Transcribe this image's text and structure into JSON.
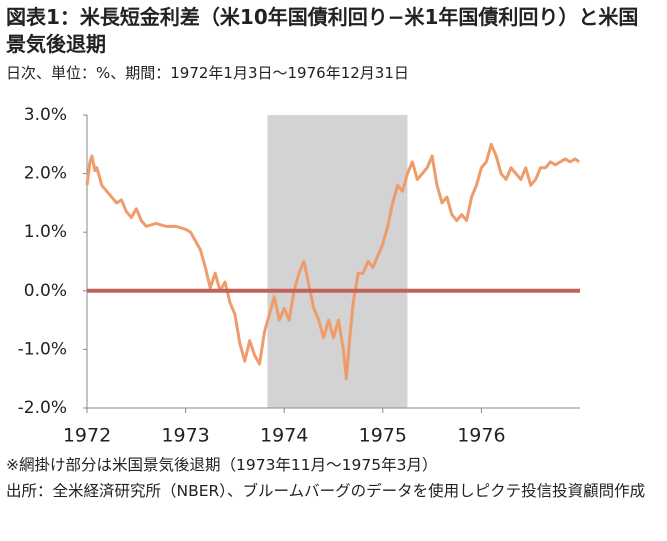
{
  "chart_data": {
    "type": "line",
    "title": "図表1：米長短金利差（米10年国債利回り−米1年国債利回り）と米国景気後退期",
    "subtitle": "日次、単位：%、期間：1972年1月3日～1976年12月31日",
    "notes": [
      "※網掛け部分は米国景気後退期（1973年11月～1975年3月）",
      "出所：全米経済研究所（NBER）、ブルームバーグのデータを使用しピクテ投信投資顧問作成"
    ],
    "x": [
      1972.0,
      1972.03,
      1972.05,
      1972.08,
      1972.1,
      1972.15,
      1972.2,
      1972.25,
      1972.3,
      1972.35,
      1972.4,
      1972.45,
      1972.5,
      1972.55,
      1972.6,
      1972.7,
      1972.8,
      1972.9,
      1973.0,
      1973.05,
      1973.1,
      1973.15,
      1973.2,
      1973.25,
      1973.3,
      1973.35,
      1973.4,
      1973.45,
      1973.5,
      1973.55,
      1973.6,
      1973.65,
      1973.7,
      1973.75,
      1973.8,
      1973.85,
      1973.9,
      1973.95,
      1974.0,
      1974.05,
      1974.1,
      1974.15,
      1974.2,
      1974.25,
      1974.3,
      1974.35,
      1974.4,
      1974.45,
      1974.5,
      1974.55,
      1974.6,
      1974.63,
      1974.66,
      1974.7,
      1974.75,
      1974.8,
      1974.85,
      1974.9,
      1974.95,
      1975.0,
      1975.05,
      1975.1,
      1975.15,
      1975.2,
      1975.25,
      1975.3,
      1975.35,
      1975.4,
      1975.45,
      1975.5,
      1975.55,
      1975.6,
      1975.65,
      1975.7,
      1975.75,
      1975.8,
      1975.85,
      1975.9,
      1975.95,
      1976.0,
      1976.05,
      1976.1,
      1976.15,
      1976.2,
      1976.25,
      1976.3,
      1976.35,
      1976.4,
      1976.45,
      1976.5,
      1976.55,
      1976.6,
      1976.65,
      1976.7,
      1976.75,
      1976.8,
      1976.85,
      1976.9,
      1976.95,
      1976.99
    ],
    "series": [
      {
        "name": "米長短金利差",
        "color": "#ee9c6c",
        "values": [
          1.8,
          2.2,
          2.3,
          2.05,
          2.1,
          1.8,
          1.7,
          1.6,
          1.5,
          1.55,
          1.35,
          1.25,
          1.4,
          1.2,
          1.1,
          1.15,
          1.1,
          1.1,
          1.05,
          1.0,
          0.85,
          0.7,
          0.4,
          0.05,
          0.3,
          0.0,
          0.15,
          -0.2,
          -0.4,
          -0.9,
          -1.2,
          -0.85,
          -1.1,
          -1.25,
          -0.7,
          -0.4,
          -0.1,
          -0.5,
          -0.3,
          -0.5,
          0.0,
          0.3,
          0.5,
          0.1,
          -0.3,
          -0.5,
          -0.8,
          -0.5,
          -0.8,
          -0.5,
          -1.0,
          -1.5,
          -0.9,
          -0.2,
          0.3,
          0.3,
          0.5,
          0.4,
          0.6,
          0.8,
          1.1,
          1.5,
          1.8,
          1.7,
          2.0,
          2.2,
          1.9,
          2.0,
          2.1,
          2.3,
          1.8,
          1.5,
          1.6,
          1.3,
          1.2,
          1.3,
          1.2,
          1.6,
          1.8,
          2.1,
          2.2,
          2.5,
          2.3,
          2.0,
          1.9,
          2.1,
          2.0,
          1.9,
          2.1,
          1.8,
          1.9,
          2.1,
          2.1,
          2.2,
          2.15,
          2.2,
          2.25,
          2.2,
          2.25,
          2.2
        ]
      }
    ],
    "xlim": [
      1972,
      1977
    ],
    "xticks": [
      1972,
      1973,
      1974,
      1975,
      1976
    ],
    "ylim": [
      -2,
      3
    ],
    "yticks": [
      {
        "value": -2,
        "label": "-2.0%"
      },
      {
        "value": -1,
        "label": "-1.0%"
      },
      {
        "value": 0,
        "label": "0.0%"
      },
      {
        "value": 1,
        "label": "1.0%"
      },
      {
        "value": 2,
        "label": "2.0%"
      },
      {
        "value": 3,
        "label": "3.0%"
      }
    ],
    "shaded_region": {
      "x": [
        1973.83,
        1975.25
      ],
      "color": "#d3d3d3"
    },
    "reference_line": {
      "value": 0,
      "color": "#c0625a"
    },
    "grid": false
  }
}
